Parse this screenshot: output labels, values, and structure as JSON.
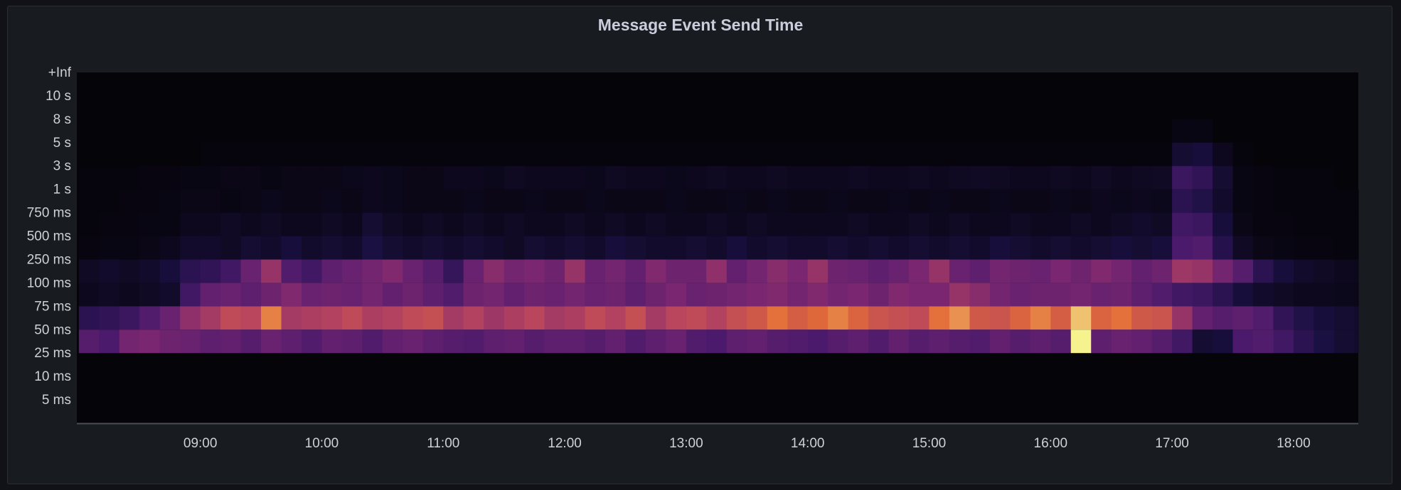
{
  "chart_data": {
    "type": "heatmap",
    "title": "Message Event Send Time",
    "x_range": [
      "07:59",
      "18:32"
    ],
    "x_ticks": [
      "09:00",
      "10:00",
      "11:00",
      "12:00",
      "13:00",
      "14:00",
      "15:00",
      "16:00",
      "17:00",
      "18:00"
    ],
    "y_ticks": [
      "+Inf",
      "10 s",
      "8 s",
      "5 s",
      "3 s",
      "1 s",
      "750 ms",
      "500 ms",
      "250 ms",
      "100 ms",
      "75 ms",
      "50 ms",
      "25 ms",
      "10 ms",
      "5 ms"
    ],
    "bucket_start": "08:00",
    "bucket_minutes": 10,
    "intensity_scale": [
      0,
      100
    ],
    "color_scheme": [
      "#050409",
      "#1c1044",
      "#4a1a6c",
      "#7a2670",
      "#b5435f",
      "#e36b38",
      "#f6f38e"
    ],
    "grid": false,
    "rows": [
      {
        "bucket": "+Inf",
        "values": [
          0,
          0,
          0,
          0,
          0,
          0,
          0,
          0,
          0,
          0,
          0,
          0,
          0,
          0,
          0,
          0,
          0,
          0,
          0,
          0,
          0,
          0,
          0,
          0,
          0,
          0,
          0,
          0,
          0,
          0,
          0,
          0,
          0,
          0,
          0,
          0,
          0,
          0,
          0,
          0,
          0,
          0,
          0,
          0,
          0,
          0,
          0,
          0,
          0,
          0,
          0,
          0,
          0,
          0,
          0,
          0,
          0,
          0,
          0,
          0,
          0,
          0,
          0,
          0
        ]
      },
      {
        "bucket": "10 s",
        "values": [
          0,
          0,
          0,
          0,
          0,
          0,
          0,
          0,
          0,
          0,
          0,
          0,
          0,
          0,
          0,
          0,
          0,
          0,
          0,
          0,
          0,
          0,
          0,
          0,
          0,
          0,
          0,
          0,
          0,
          0,
          0,
          0,
          0,
          0,
          0,
          0,
          0,
          0,
          0,
          0,
          0,
          0,
          0,
          0,
          0,
          0,
          0,
          0,
          0,
          0,
          0,
          0,
          0,
          0,
          0,
          0,
          0,
          0,
          0,
          0,
          0,
          0,
          0,
          0
        ]
      },
      {
        "bucket": "8 s",
        "values": [
          0,
          0,
          0,
          0,
          0,
          0,
          0,
          0,
          0,
          0,
          0,
          0,
          0,
          0,
          0,
          0,
          0,
          0,
          0,
          0,
          0,
          0,
          0,
          0,
          0,
          0,
          0,
          0,
          0,
          0,
          0,
          0,
          0,
          0,
          0,
          0,
          0,
          0,
          0,
          0,
          0,
          0,
          0,
          0,
          0,
          0,
          0,
          0,
          0,
          0,
          0,
          0,
          0,
          0,
          3,
          3,
          0,
          0,
          0,
          0,
          0,
          0,
          0,
          0
        ]
      },
      {
        "bucket": "5 s",
        "values": [
          0,
          0,
          0,
          0,
          0,
          0,
          1,
          1,
          1,
          1,
          1,
          1,
          1,
          1,
          1,
          1,
          1,
          1,
          1,
          1,
          1,
          1,
          1,
          1,
          1,
          1,
          1,
          1,
          1,
          1,
          1,
          1,
          1,
          1,
          1,
          1,
          1,
          1,
          1,
          1,
          1,
          1,
          1,
          1,
          1,
          1,
          1,
          1,
          1,
          1,
          1,
          1,
          1,
          1,
          12,
          14,
          6,
          1,
          0,
          0,
          0,
          0,
          0,
          0
        ]
      },
      {
        "bucket": "3 s",
        "values": [
          1,
          1,
          1,
          2,
          2,
          3,
          3,
          4,
          4,
          3,
          4,
          4,
          4,
          5,
          6,
          5,
          4,
          4,
          6,
          6,
          5,
          7,
          6,
          6,
          6,
          5,
          7,
          6,
          6,
          5,
          6,
          7,
          6,
          6,
          7,
          6,
          6,
          6,
          7,
          6,
          6,
          7,
          6,
          7,
          8,
          7,
          6,
          6,
          7,
          6,
          8,
          6,
          7,
          8,
          28,
          24,
          12,
          3,
          2,
          1,
          1,
          1,
          0,
          0
        ]
      },
      {
        "bucket": "1 s",
        "values": [
          1,
          1,
          2,
          2,
          3,
          4,
          4,
          3,
          4,
          5,
          4,
          4,
          5,
          4,
          6,
          5,
          4,
          4,
          4,
          5,
          4,
          4,
          5,
          4,
          4,
          5,
          4,
          4,
          4,
          5,
          4,
          4,
          5,
          4,
          5,
          4,
          4,
          5,
          4,
          4,
          5,
          4,
          5,
          4,
          4,
          5,
          4,
          4,
          5,
          4,
          6,
          5,
          6,
          5,
          22,
          18,
          10,
          3,
          2,
          1,
          1,
          1,
          1,
          1
        ]
      },
      {
        "bucket": "750 ms",
        "values": [
          1,
          2,
          2,
          3,
          3,
          6,
          6,
          8,
          6,
          8,
          6,
          6,
          8,
          6,
          12,
          8,
          6,
          8,
          6,
          8,
          6,
          8,
          6,
          6,
          8,
          6,
          8,
          6,
          8,
          6,
          6,
          8,
          6,
          8,
          6,
          6,
          6,
          6,
          8,
          6,
          6,
          8,
          6,
          8,
          6,
          6,
          8,
          6,
          6,
          8,
          6,
          8,
          10,
          8,
          30,
          28,
          14,
          4,
          2,
          2,
          1,
          1,
          1,
          1
        ]
      },
      {
        "bucket": "500 ms",
        "values": [
          2,
          3,
          3,
          4,
          6,
          10,
          10,
          8,
          12,
          10,
          14,
          10,
          12,
          10,
          16,
          12,
          10,
          12,
          10,
          12,
          10,
          8,
          12,
          10,
          12,
          10,
          14,
          12,
          10,
          10,
          12,
          10,
          14,
          10,
          12,
          10,
          10,
          12,
          10,
          12,
          10,
          12,
          10,
          12,
          10,
          14,
          12,
          10,
          12,
          10,
          12,
          14,
          12,
          14,
          34,
          36,
          20,
          8,
          4,
          3,
          2,
          2,
          1,
          1
        ]
      },
      {
        "bucket": "250 ms",
        "values": [
          8,
          10,
          8,
          10,
          14,
          22,
          24,
          30,
          44,
          58,
          36,
          30,
          40,
          44,
          48,
          52,
          44,
          38,
          26,
          44,
          54,
          48,
          50,
          46,
          58,
          44,
          48,
          42,
          52,
          46,
          46,
          56,
          42,
          48,
          54,
          50,
          58,
          46,
          44,
          40,
          44,
          50,
          58,
          44,
          40,
          48,
          46,
          44,
          50,
          46,
          52,
          48,
          42,
          46,
          60,
          58,
          48,
          38,
          22,
          14,
          10,
          8,
          6,
          5
        ]
      },
      {
        "bucket": "100 ms",
        "values": [
          6,
          8,
          6,
          8,
          10,
          30,
          42,
          44,
          40,
          46,
          52,
          44,
          46,
          44,
          48,
          42,
          46,
          40,
          36,
          46,
          48,
          42,
          46,
          44,
          48,
          44,
          46,
          40,
          46,
          50,
          44,
          46,
          48,
          50,
          52,
          48,
          52,
          48,
          50,
          46,
          52,
          50,
          50,
          58,
          54,
          48,
          44,
          46,
          46,
          48,
          44,
          46,
          40,
          36,
          30,
          28,
          22,
          14,
          10,
          8,
          6,
          6,
          5,
          4
        ]
      },
      {
        "bucket": "75 ms",
        "values": [
          22,
          24,
          28,
          36,
          44,
          56,
          62,
          70,
          68,
          86,
          62,
          64,
          66,
          70,
          64,
          66,
          70,
          72,
          62,
          66,
          60,
          64,
          68,
          62,
          64,
          70,
          66,
          72,
          62,
          68,
          70,
          66,
          72,
          76,
          84,
          78,
          82,
          86,
          80,
          74,
          72,
          70,
          84,
          88,
          76,
          74,
          80,
          86,
          78,
          94,
          80,
          84,
          76,
          74,
          58,
          42,
          38,
          40,
          36,
          24,
          18,
          14,
          12,
          10
        ]
      },
      {
        "bucket": "50 ms",
        "values": [
          38,
          34,
          48,
          50,
          46,
          44,
          40,
          42,
          38,
          44,
          40,
          36,
          42,
          40,
          36,
          42,
          44,
          40,
          38,
          36,
          40,
          42,
          38,
          40,
          40,
          38,
          42,
          36,
          40,
          44,
          36,
          34,
          40,
          42,
          38,
          36,
          34,
          38,
          40,
          36,
          42,
          38,
          40,
          38,
          36,
          42,
          38,
          40,
          38,
          100,
          40,
          44,
          42,
          38,
          30,
          12,
          14,
          34,
          36,
          30,
          22,
          16,
          12,
          10
        ]
      },
      {
        "bucket": "25 ms",
        "values": [
          0,
          0,
          0,
          0,
          0,
          0,
          0,
          0,
          0,
          0,
          0,
          0,
          0,
          0,
          0,
          0,
          0,
          0,
          0,
          0,
          0,
          0,
          0,
          0,
          0,
          0,
          0,
          0,
          0,
          0,
          0,
          0,
          0,
          0,
          0,
          0,
          0,
          0,
          0,
          0,
          0,
          0,
          0,
          0,
          0,
          0,
          0,
          0,
          0,
          0,
          0,
          0,
          0,
          0,
          0,
          0,
          0,
          0,
          0,
          0,
          0,
          0,
          0,
          0
        ]
      },
      {
        "bucket": "10 ms",
        "values": [
          0,
          0,
          0,
          0,
          0,
          0,
          0,
          0,
          0,
          0,
          0,
          0,
          0,
          0,
          0,
          0,
          0,
          0,
          0,
          0,
          0,
          0,
          0,
          0,
          0,
          0,
          0,
          0,
          0,
          0,
          0,
          0,
          0,
          0,
          0,
          0,
          0,
          0,
          0,
          0,
          0,
          0,
          0,
          0,
          0,
          0,
          0,
          0,
          0,
          0,
          0,
          0,
          0,
          0,
          0,
          0,
          0,
          0,
          0,
          0,
          0,
          0,
          0,
          0
        ]
      },
      {
        "bucket": "5 ms",
        "values": [
          0,
          0,
          0,
          0,
          0,
          0,
          0,
          0,
          0,
          0,
          0,
          0,
          0,
          0,
          0,
          0,
          0,
          0,
          0,
          0,
          0,
          0,
          0,
          0,
          0,
          0,
          0,
          0,
          0,
          0,
          0,
          0,
          0,
          0,
          0,
          0,
          0,
          0,
          0,
          0,
          0,
          0,
          0,
          0,
          0,
          0,
          0,
          0,
          0,
          0,
          0,
          0,
          0,
          0,
          0,
          0,
          0,
          0,
          0,
          0,
          0,
          0,
          0,
          0
        ]
      }
    ]
  }
}
